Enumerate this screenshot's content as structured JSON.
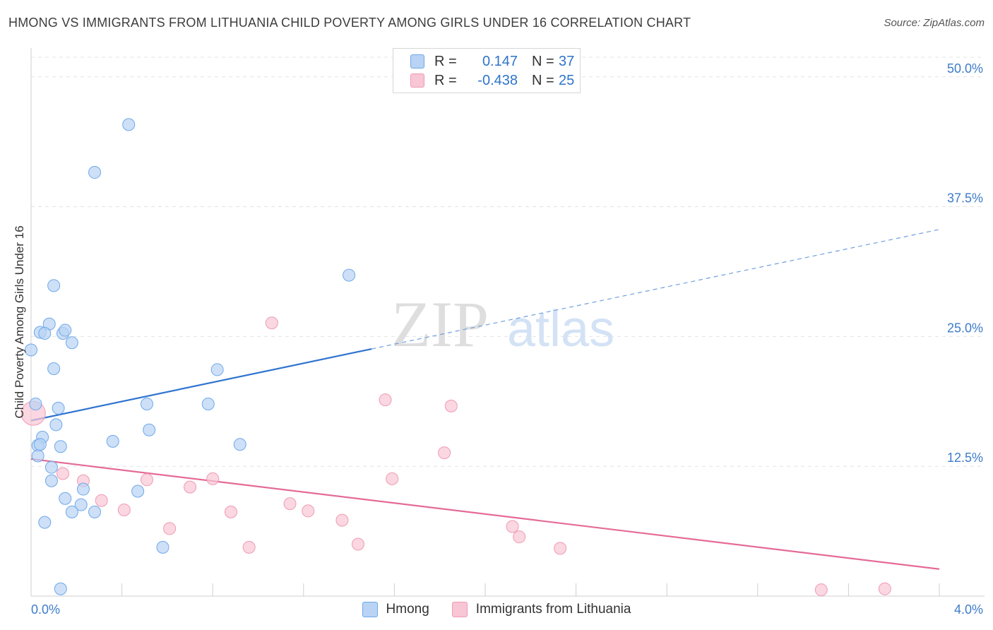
{
  "header": {
    "title": "HMONG VS IMMIGRANTS FROM LITHUANIA CHILD POVERTY AMONG GIRLS UNDER 16 CORRELATION CHART",
    "source": "Source: ZipAtlas.com"
  },
  "watermark": {
    "zip": "ZIP",
    "atlas": "atlas"
  },
  "legend": {
    "rows": [
      {
        "r_label": "R =",
        "r_value": "0.147",
        "n_label": "N =",
        "n_value": "37",
        "color": "#b8d3f4"
      },
      {
        "r_label": "R =",
        "r_value": "-0.438",
        "n_label": "N =",
        "n_value": "25",
        "color": "#f8c6d4"
      }
    ]
  },
  "chart_data": {
    "type": "scatter",
    "title": "HMONG VS IMMIGRANTS FROM LITHUANIA CHILD POVERTY AMONG GIRLS UNDER 16 CORRELATION CHART",
    "xlabel": "",
    "ylabel": "Child Poverty Among Girls Under 16",
    "xlim": [
      0,
      4.0
    ],
    "ylim": [
      0,
      52.5
    ],
    "x_tick_labels": [
      "0.0%",
      "4.0%"
    ],
    "y_ticks": [
      12.5,
      25.0,
      37.5,
      50.0
    ],
    "y_tick_labels": [
      "12.5%",
      "25.0%",
      "37.5%",
      "50.0%"
    ],
    "grid": true,
    "legend_position": "top-center",
    "series": [
      {
        "name": "Hmong",
        "color": "#6fa8e8",
        "fill": "#b8d3f4",
        "points": [
          [
            0.43,
            45.4
          ],
          [
            0.28,
            40.8
          ],
          [
            0.1,
            29.9
          ],
          [
            1.4,
            30.9
          ],
          [
            0.08,
            26.2
          ],
          [
            0.04,
            25.4
          ],
          [
            0.06,
            25.3
          ],
          [
            0.14,
            25.3
          ],
          [
            0.15,
            25.6
          ],
          [
            0.18,
            24.4
          ],
          [
            0.0,
            23.7
          ],
          [
            0.1,
            21.9
          ],
          [
            0.82,
            21.8
          ],
          [
            0.02,
            18.5
          ],
          [
            0.51,
            18.5
          ],
          [
            0.78,
            18.5
          ],
          [
            0.12,
            18.1
          ],
          [
            0.11,
            16.5
          ],
          [
            0.52,
            16.0
          ],
          [
            0.05,
            15.3
          ],
          [
            0.36,
            14.9
          ],
          [
            0.03,
            14.5
          ],
          [
            0.04,
            14.6
          ],
          [
            0.13,
            14.4
          ],
          [
            0.92,
            14.6
          ],
          [
            0.03,
            13.5
          ],
          [
            0.09,
            12.4
          ],
          [
            0.09,
            11.1
          ],
          [
            0.23,
            10.3
          ],
          [
            0.47,
            10.1
          ],
          [
            0.15,
            9.4
          ],
          [
            0.22,
            8.8
          ],
          [
            0.18,
            8.1
          ],
          [
            0.28,
            8.1
          ],
          [
            0.06,
            7.1
          ],
          [
            0.58,
            4.7
          ],
          [
            0.13,
            0.7
          ]
        ]
      },
      {
        "name": "Immigrants from Lithuania",
        "color": "#ef9ab5",
        "fill": "#f8c6d4",
        "points": [
          [
            0.01,
            17.6
          ],
          [
            1.06,
            26.3
          ],
          [
            1.56,
            18.9
          ],
          [
            1.85,
            18.3
          ],
          [
            1.82,
            13.8
          ],
          [
            0.14,
            11.8
          ],
          [
            0.23,
            11.1
          ],
          [
            0.51,
            11.2
          ],
          [
            0.8,
            11.3
          ],
          [
            1.59,
            11.3
          ],
          [
            0.7,
            10.5
          ],
          [
            0.31,
            9.2
          ],
          [
            1.14,
            8.9
          ],
          [
            0.41,
            8.3
          ],
          [
            0.88,
            8.1
          ],
          [
            1.22,
            8.2
          ],
          [
            1.37,
            7.3
          ],
          [
            0.61,
            6.5
          ],
          [
            2.12,
            6.7
          ],
          [
            2.15,
            5.7
          ],
          [
            1.44,
            5.0
          ],
          [
            0.96,
            4.7
          ],
          [
            2.33,
            4.6
          ],
          [
            3.48,
            0.6
          ],
          [
            3.76,
            0.7
          ]
        ]
      }
    ],
    "trendlines": [
      {
        "series": "Hmong",
        "x_from": 0.0,
        "y_from": 16.9,
        "x_solid_to": 1.5,
        "y_solid_to": 23.8,
        "x_to": 4.0,
        "y_to": 35.3,
        "style": "solid then dashed"
      },
      {
        "series": "Immigrants from Lithuania",
        "x_from": 0.0,
        "y_from": 13.2,
        "x_to": 4.0,
        "y_to": 2.6,
        "style": "solid"
      }
    ]
  }
}
